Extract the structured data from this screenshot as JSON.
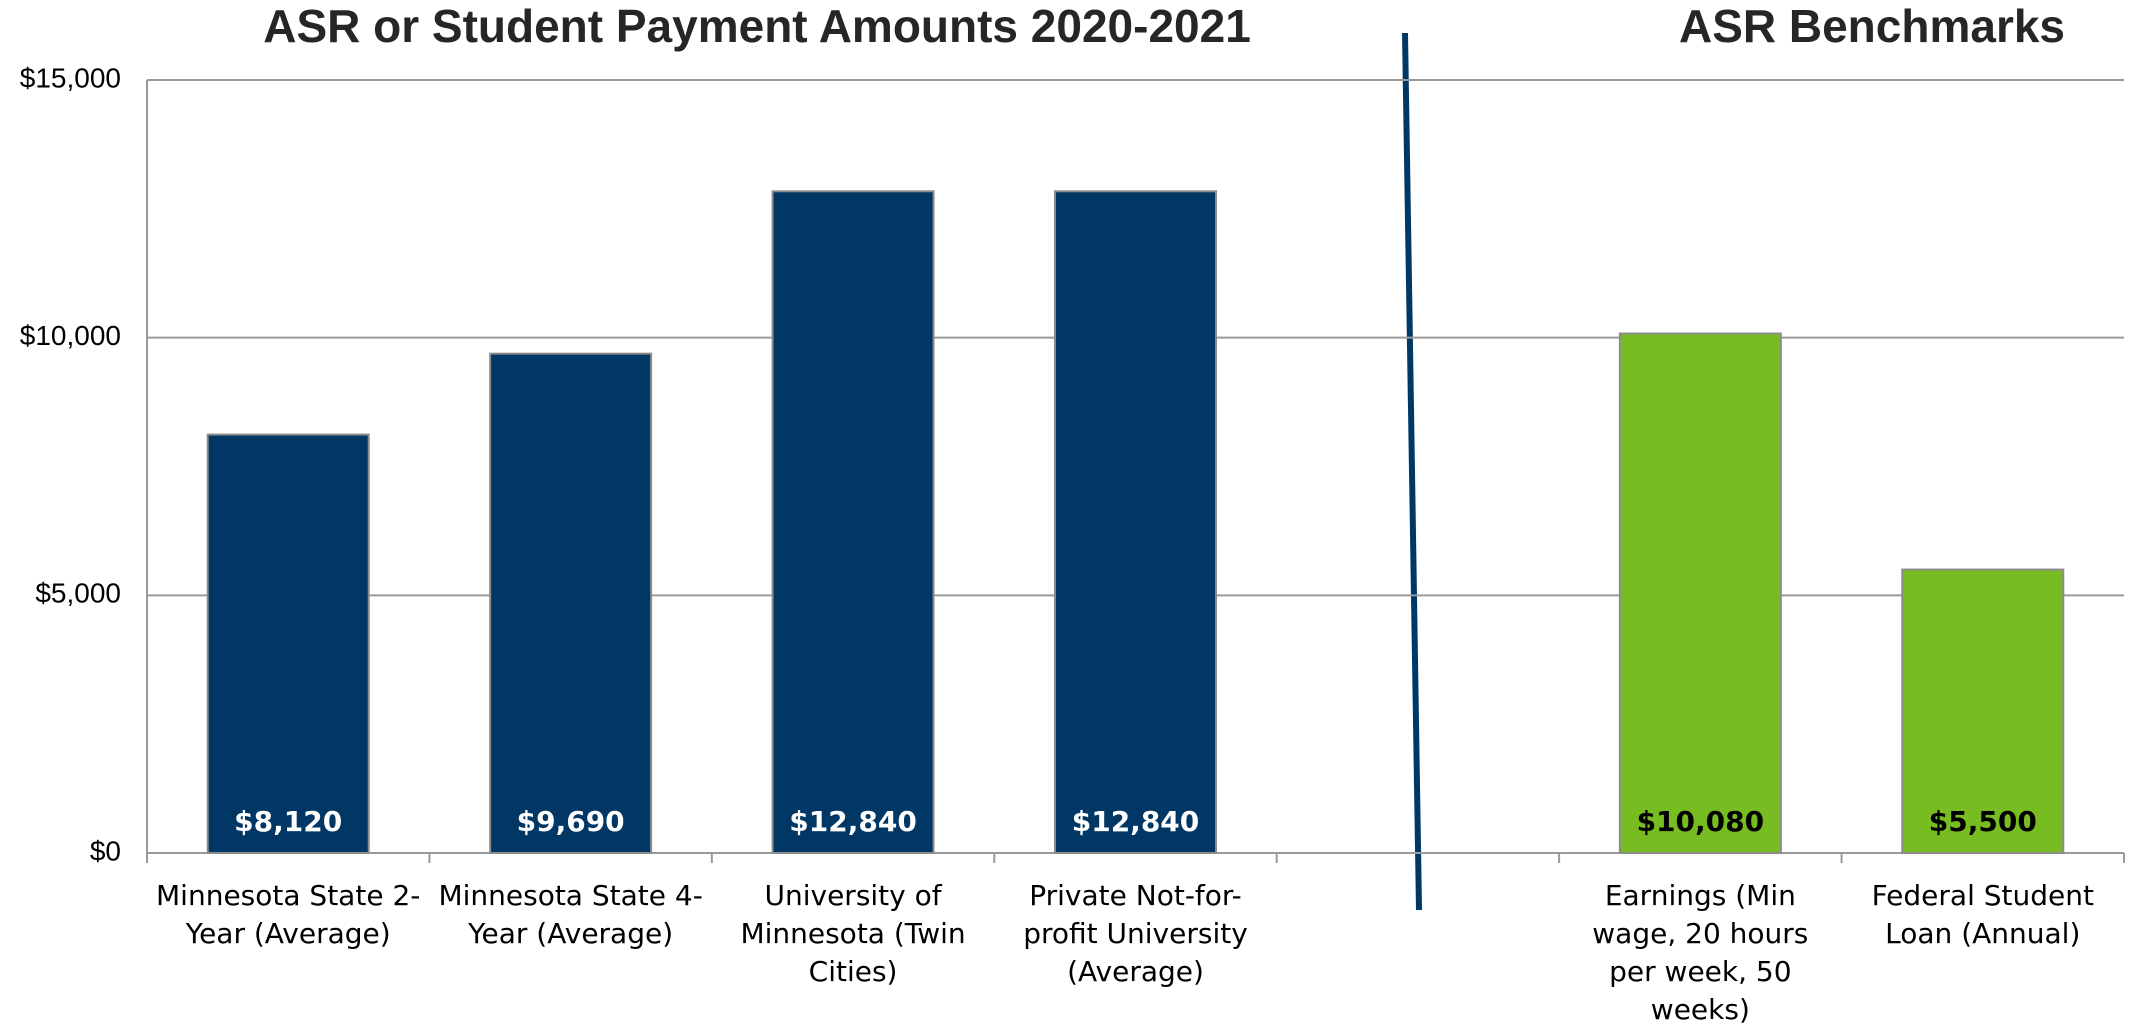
{
  "chart_data": {
    "type": "bar",
    "title": "ASR or Student Payment Amounts 2020-2021",
    "subtitle": "ASR Benchmarks",
    "categories": [
      "Minnesota State 2-Year (Average)",
      "Minnesota State 4-Year (Average)",
      "University of Minnesota (Twin Cities)",
      "Private Not-for-profit University (Average)",
      null,
      "Earnings (Min wage, 20 hours per week, 50 weeks)",
      "Federal Student Loan (Annual)"
    ],
    "values": [
      8120,
      9690,
      12840,
      12840,
      null,
      10080,
      5500
    ],
    "value_labels": [
      "$8,120",
      "$9,690",
      "$12,840",
      "$12,840",
      null,
      "$10,080",
      "$5,500"
    ],
    "colors": [
      "#003764",
      "#003764",
      "#003764",
      "#003764",
      null,
      "#77bc21",
      "#77bc21"
    ],
    "ylim": [
      0,
      15000
    ],
    "yticks": [
      {
        "value": 0,
        "label": "$0"
      },
      {
        "value": 5000,
        "label": "$5,000"
      },
      {
        "value": 10000,
        "label": "$10,000"
      },
      {
        "value": 15000,
        "label": "$15,000"
      }
    ],
    "grid": true
  }
}
